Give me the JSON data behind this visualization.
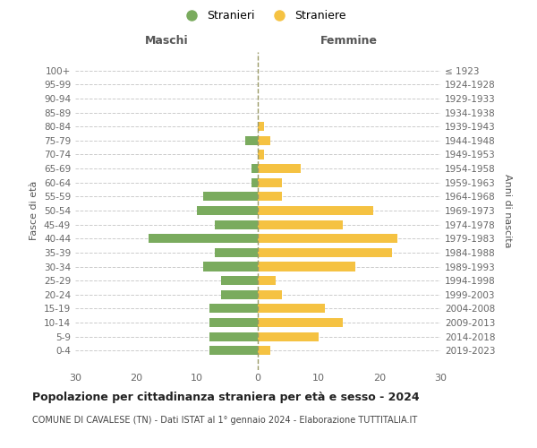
{
  "age_groups_bottom_to_top": [
    "0-4",
    "5-9",
    "10-14",
    "15-19",
    "20-24",
    "25-29",
    "30-34",
    "35-39",
    "40-44",
    "45-49",
    "50-54",
    "55-59",
    "60-64",
    "65-69",
    "70-74",
    "75-79",
    "80-84",
    "85-89",
    "90-94",
    "95-99",
    "100+"
  ],
  "birth_years_bottom_to_top": [
    "2019-2023",
    "2014-2018",
    "2009-2013",
    "2004-2008",
    "1999-2003",
    "1994-1998",
    "1989-1993",
    "1984-1988",
    "1979-1983",
    "1974-1978",
    "1969-1973",
    "1964-1968",
    "1959-1963",
    "1954-1958",
    "1949-1953",
    "1944-1948",
    "1939-1943",
    "1934-1938",
    "1929-1933",
    "1924-1928",
    "≤ 1923"
  ],
  "maschi_bottom_to_top": [
    8,
    8,
    8,
    8,
    6,
    6,
    9,
    7,
    18,
    7,
    10,
    9,
    1,
    1,
    0,
    2,
    0,
    0,
    0,
    0,
    0
  ],
  "femmine_bottom_to_top": [
    2,
    10,
    14,
    11,
    4,
    3,
    16,
    22,
    23,
    14,
    19,
    4,
    4,
    7,
    1,
    2,
    1,
    0,
    0,
    0,
    0
  ],
  "color_maschi": "#7aab5e",
  "color_femmine": "#f5c242",
  "color_center_line": "#999966",
  "xlim": 30,
  "title": "Popolazione per cittadinanza straniera per età e sesso - 2024",
  "subtitle": "COMUNE DI CAVALESE (TN) - Dati ISTAT al 1° gennaio 2024 - Elaborazione TUTTITALIA.IT",
  "ylabel_left": "Fasce di età",
  "ylabel_right": "Anni di nascita",
  "xlabel_left": "Maschi",
  "xlabel_right": "Femmine",
  "legend_maschi": "Stranieri",
  "legend_femmine": "Straniere",
  "bg_color": "#ffffff",
  "grid_color": "#cccccc"
}
